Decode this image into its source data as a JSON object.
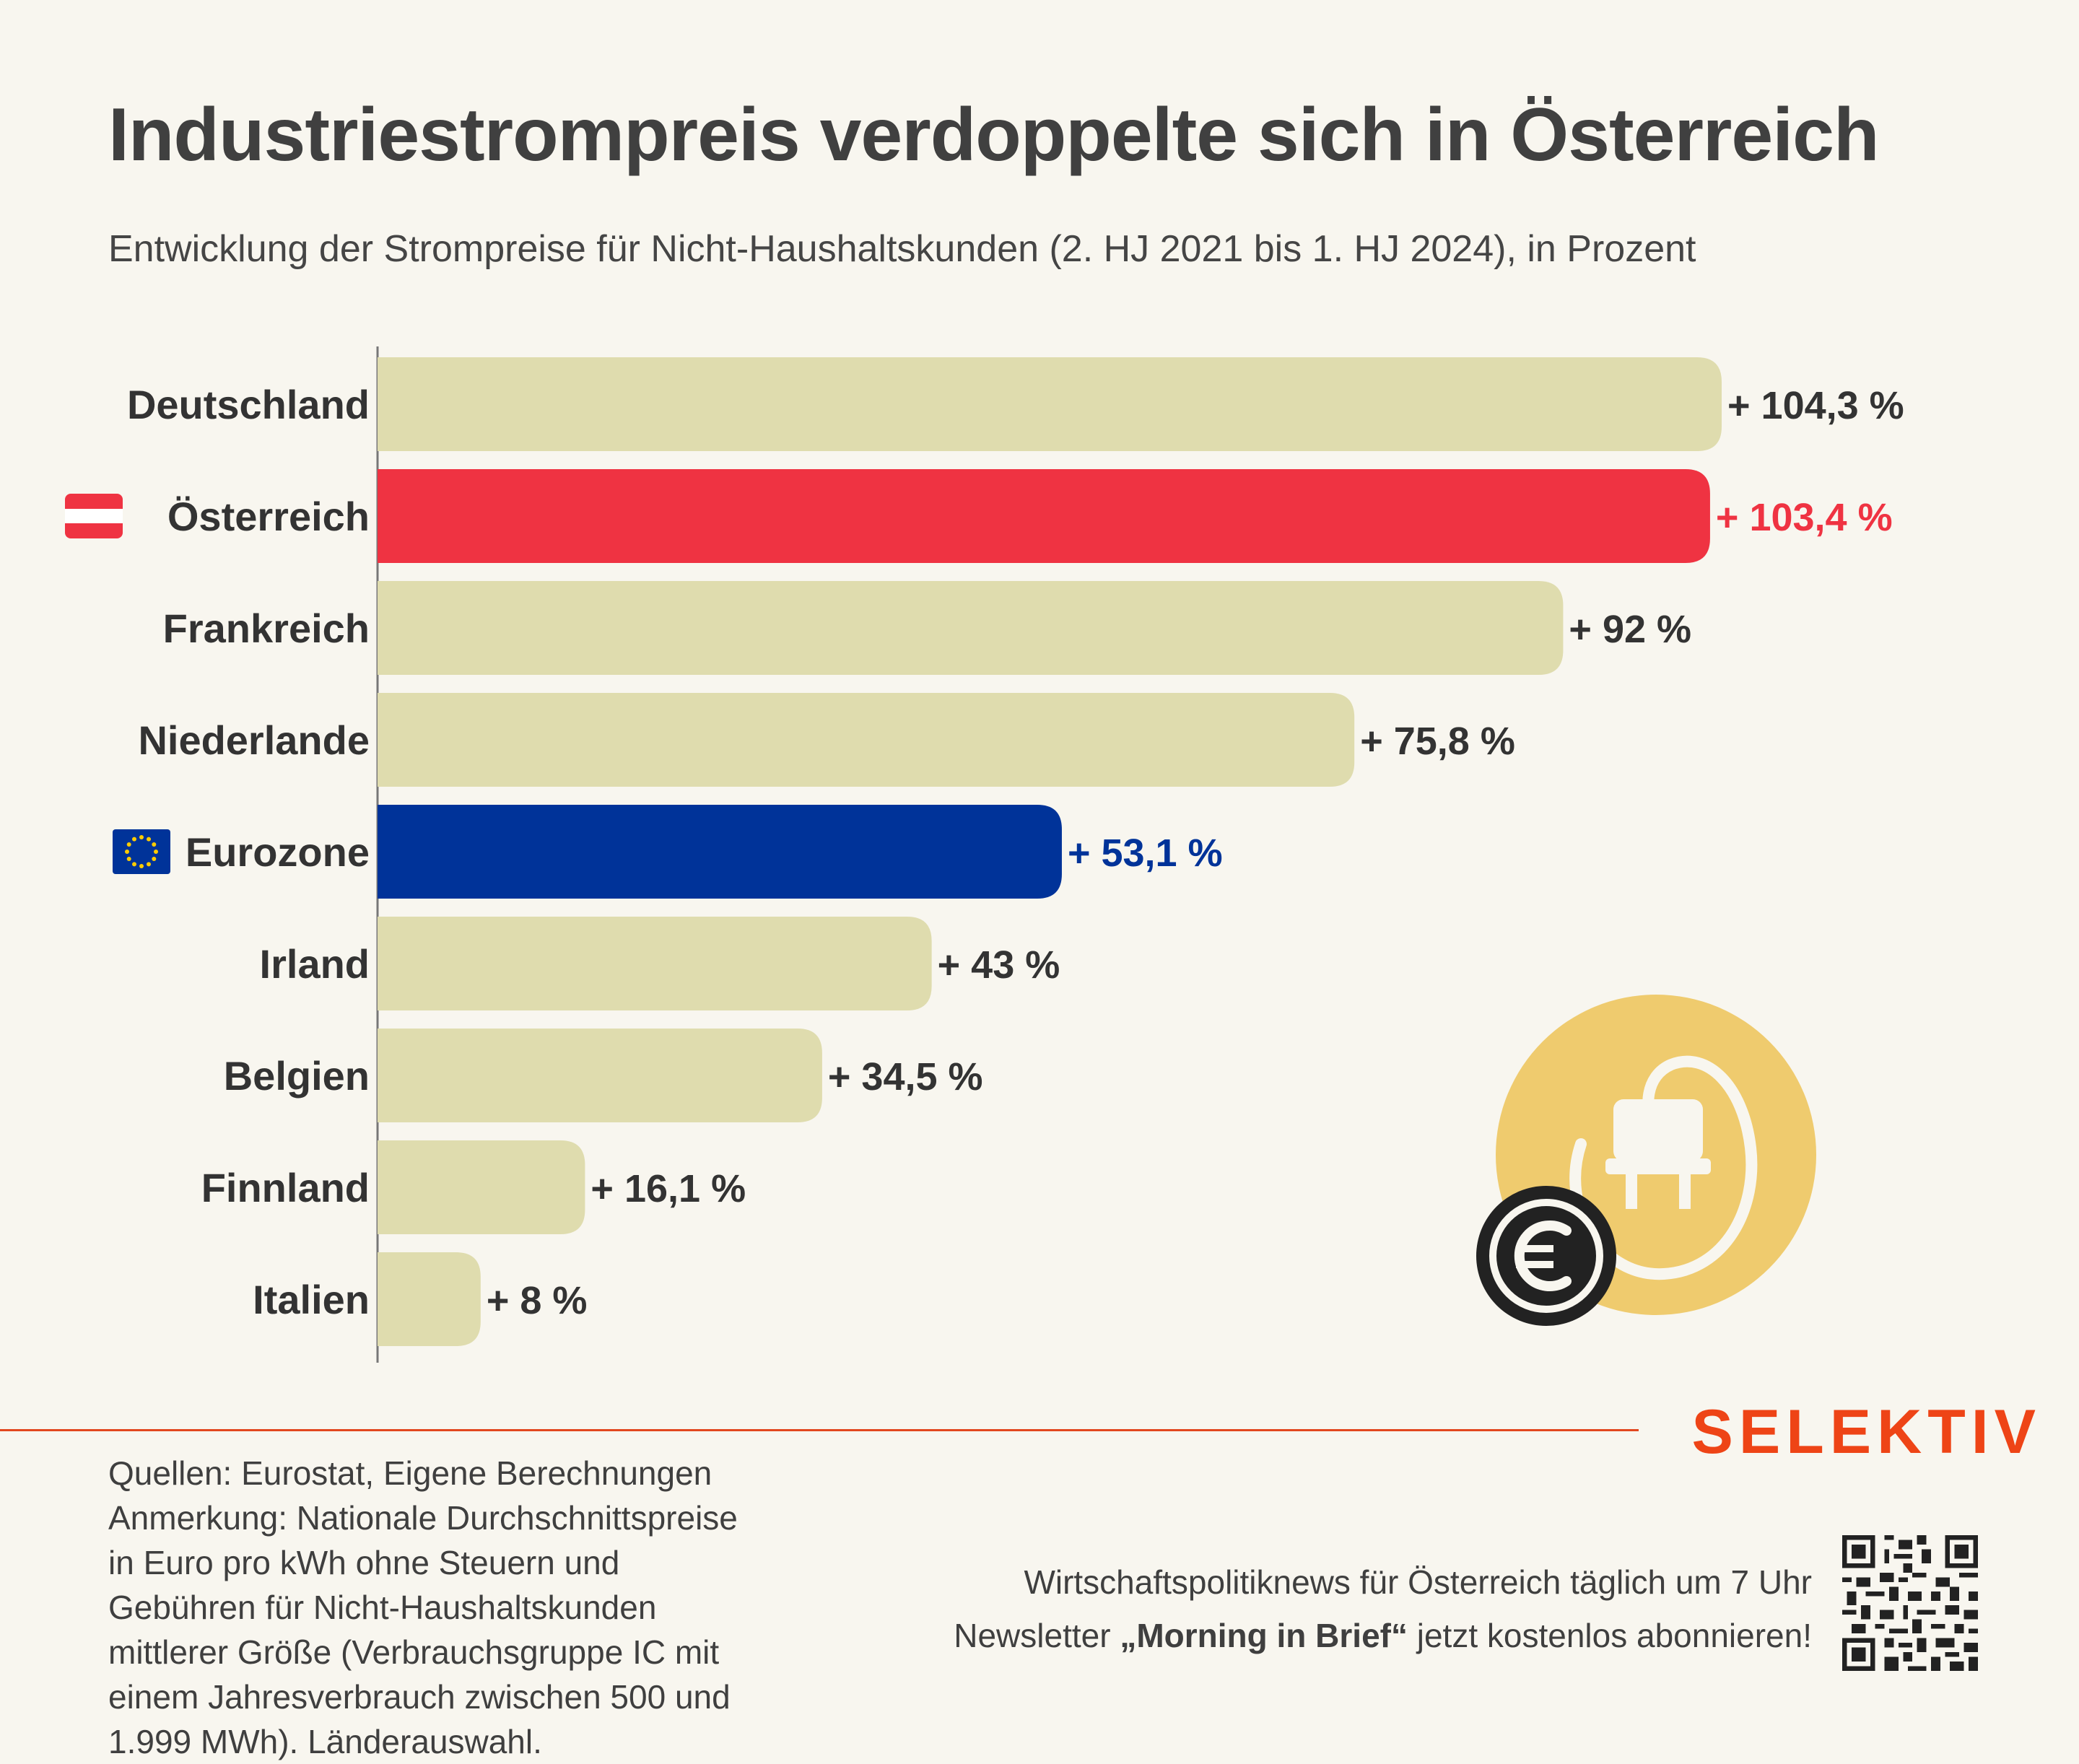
{
  "header": {
    "title": "Industriestrompreis verdoppelte sich in Österreich",
    "subtitle": "Entwicklung der Strompreise für Nicht-Haushaltskunden (2. HJ 2021 bis 1. HJ 2024), in Prozent"
  },
  "chart_data": {
    "type": "bar",
    "orientation": "horizontal",
    "title": "Industriestrompreis verdoppelte sich in Österreich",
    "categories": [
      "Deutschland",
      "Österreich",
      "Frankreich",
      "Niederlande",
      "Eurozone",
      "Irland",
      "Belgien",
      "Finnland",
      "Italien"
    ],
    "values": [
      104.3,
      103.4,
      92,
      75.8,
      53.1,
      43,
      34.5,
      16.1,
      8
    ],
    "value_labels": [
      "+ 104,3 %",
      "+ 103,4 %",
      "+ 92 %",
      "+ 75,8 %",
      "+ 53,1 %",
      "+ 43 %",
      "+ 34,5 %",
      "+ 16,1 %",
      "+ 8 %"
    ],
    "flags": [
      "",
      "austria-flag-icon",
      "",
      "",
      "eu-flag-icon",
      "",
      "",
      "",
      ""
    ],
    "colors": {
      "default": "#dfdcae",
      "Österreich": "#ef3342",
      "Eurozone": "#003399"
    },
    "label_colors": {
      "default": "#333333",
      "Österreich": "#ef3342",
      "Eurozone": "#003399"
    },
    "xlim": [
      0,
      104.3
    ],
    "grid": false,
    "legend": "none"
  },
  "decoration": {
    "icon": "power-plug-euro-icon",
    "icon_color": "#efcb6e",
    "coin_color": "#222222"
  },
  "brand": {
    "name": "SELEKTIV",
    "color": "#ee4416"
  },
  "footer": {
    "source_lines": [
      "Quellen: Eurostat, Eigene Berechnungen",
      "Anmerkung: Nationale Durchschnittspreise",
      "in Euro pro kWh ohne Steuern und",
      "Gebühren für Nicht-Haushaltskunden",
      "mittlerer Größe (Verbrauchsgruppe IC mit",
      "einem Jahresverbrauch zwischen 500 und",
      "1.999 MWh). Länderauswahl."
    ],
    "promo_line1": "Wirtschaftspolitiknews für Österreich täglich um 7 Uhr",
    "promo_line2_prefix": "Newsletter ",
    "promo_line2_bold": "„Morning in Brief“",
    "promo_line2_suffix": " jetzt kostenlos abonnieren!",
    "qr": "qr-code-icon"
  }
}
